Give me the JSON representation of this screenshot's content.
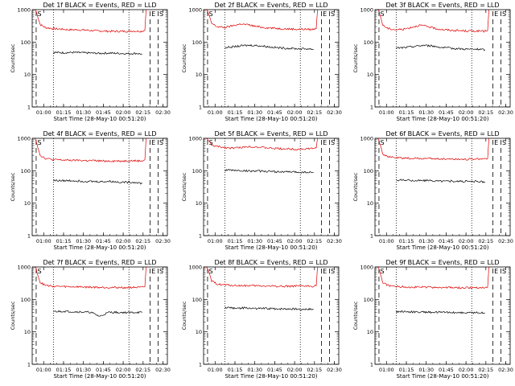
{
  "colors": {
    "events": "#000000",
    "lld": "#e00000",
    "axes": "#000000"
  },
  "chart_data": [
    {
      "type": "line",
      "title": "Det 1f BLACK = Events, RED = LLD",
      "xlabel": "Start Time (28-May-10 00:51:20)",
      "ylabel": "Counts/sec",
      "x_ticks": [
        "01:00",
        "01:15",
        "01:30",
        "01:45",
        "02:00",
        "02:15",
        "02:30"
      ],
      "y_ticks": [
        "1",
        "10",
        "100",
        "1000"
      ],
      "yscale": "log",
      "ylim": [
        1,
        1000
      ],
      "xlim": [
        "00:51:20",
        "02:33:20"
      ],
      "markers": [
        "S",
        "E",
        "S"
      ],
      "dashed_x": [
        "00:54:20",
        "02:20:20",
        "02:26:20"
      ],
      "dotted_x": [
        "01:07:20",
        "02:04:20"
      ],
      "series": [
        {
          "key": "lld",
          "x": [
            "00:53:20",
            "00:54:20",
            "00:57:20",
            "01:01:20",
            "01:07:20",
            "01:13:20",
            "01:19:20",
            "01:25:20",
            "01:31:20",
            "01:37:20",
            "01:43:20",
            "01:49:20",
            "01:55:20",
            "02:01:20",
            "02:07:20",
            "02:13:20",
            "02:16:20",
            "02:17:20"
          ],
          "y": [
            1000,
            900,
            350,
            280,
            260,
            250,
            240,
            240,
            235,
            225,
            220,
            215,
            215,
            215,
            220,
            215,
            230,
            1000
          ]
        },
        {
          "key": "events",
          "x": [
            "01:07:20",
            "01:14:20",
            "01:21:20",
            "01:28:20",
            "01:35:20",
            "01:42:20",
            "01:49:20",
            "01:56:20",
            "02:03:20",
            "02:10:20",
            "02:14:20"
          ],
          "y": [
            48,
            47,
            48,
            47,
            46,
            45,
            46,
            45,
            44,
            45,
            42
          ]
        }
      ]
    },
    {
      "type": "line",
      "title": "Det 2f BLACK = Events, RED = LLD",
      "xlabel": "Start Time (28-May-10 00:51:20)",
      "ylabel": "Counts/sec",
      "x_ticks": [
        "01:00",
        "01:15",
        "01:30",
        "01:45",
        "02:00",
        "02:15",
        "02:30"
      ],
      "y_ticks": [
        "1",
        "10",
        "100",
        "1000"
      ],
      "yscale": "log",
      "ylim": [
        1,
        1000
      ],
      "xlim": [
        "00:51:20",
        "02:33:20"
      ],
      "markers": [
        "S",
        "E",
        "S"
      ],
      "dashed_x": [
        "00:54:20",
        "02:20:20",
        "02:26:20"
      ],
      "dotted_x": [
        "01:07:20",
        "02:04:20"
      ],
      "series": [
        {
          "key": "lld",
          "x": [
            "00:53:20",
            "00:54:20",
            "00:57:20",
            "01:01:20",
            "01:07:20",
            "01:13:20",
            "01:19:20",
            "01:25:20",
            "01:31:20",
            "01:37:20",
            "01:43:20",
            "01:49:20",
            "01:55:20",
            "02:01:20",
            "02:07:20",
            "02:13:20",
            "02:16:20",
            "02:17:20"
          ],
          "y": [
            1000,
            900,
            380,
            300,
            280,
            320,
            360,
            340,
            300,
            280,
            270,
            260,
            255,
            250,
            250,
            245,
            260,
            1000
          ]
        },
        {
          "key": "events",
          "x": [
            "01:07:20",
            "01:14:20",
            "01:21:20",
            "01:28:20",
            "01:35:20",
            "01:42:20",
            "01:49:20",
            "01:56:20",
            "02:03:20",
            "02:10:20",
            "02:14:20"
          ],
          "y": [
            68,
            72,
            78,
            80,
            76,
            70,
            66,
            64,
            62,
            62,
            60
          ]
        }
      ]
    },
    {
      "type": "line",
      "title": "Det 3f BLACK = Events, RED = LLD",
      "xlabel": "Start Time (28-May-10 00:51:20)",
      "ylabel": "Counts/sec",
      "x_ticks": [
        "01:00",
        "01:15",
        "01:30",
        "01:45",
        "02:00",
        "02:15",
        "02:30"
      ],
      "y_ticks": [
        "1",
        "10",
        "100",
        "1000"
      ],
      "yscale": "log",
      "ylim": [
        1,
        1000
      ],
      "xlim": [
        "00:51:20",
        "02:33:20"
      ],
      "markers": [
        "S",
        "E",
        "S"
      ],
      "dashed_x": [
        "00:54:20",
        "02:20:20",
        "02:26:20"
      ],
      "dotted_x": [
        "01:07:20",
        "02:04:20"
      ],
      "series": [
        {
          "key": "lld",
          "x": [
            "00:53:20",
            "00:54:20",
            "00:57:20",
            "01:01:20",
            "01:07:20",
            "01:13:20",
            "01:19:20",
            "01:25:20",
            "01:31:20",
            "01:37:20",
            "01:43:20",
            "01:49:20",
            "01:55:20",
            "02:01:20",
            "02:07:20",
            "02:13:20",
            "02:16:20",
            "02:17:20"
          ],
          "y": [
            1000,
            900,
            330,
            260,
            240,
            250,
            290,
            330,
            300,
            260,
            240,
            230,
            225,
            220,
            220,
            215,
            230,
            1000
          ]
        },
        {
          "key": "events",
          "x": [
            "01:07:20",
            "01:14:20",
            "01:21:20",
            "01:28:20",
            "01:35:20",
            "01:42:20",
            "01:49:20",
            "01:56:20",
            "02:03:20",
            "02:10:20",
            "02:14:20"
          ],
          "y": [
            65,
            68,
            74,
            80,
            75,
            68,
            64,
            62,
            60,
            60,
            58
          ]
        }
      ]
    },
    {
      "type": "line",
      "title": "Det 4f BLACK = Events, RED = LLD",
      "xlabel": "Start Time (28-May-10 00:51:20)",
      "ylabel": "Counts/sec",
      "x_ticks": [
        "01:00",
        "01:15",
        "01:30",
        "01:45",
        "02:00",
        "02:15",
        "02:30"
      ],
      "y_ticks": [
        "1",
        "10",
        "100",
        "1000"
      ],
      "yscale": "log",
      "ylim": [
        1,
        1000
      ],
      "xlim": [
        "00:51:20",
        "02:33:20"
      ],
      "markers": [
        "S",
        "E",
        "S"
      ],
      "dashed_x": [
        "00:54:20",
        "02:20:20",
        "02:26:20"
      ],
      "dotted_x": [
        "01:07:20",
        "02:04:20"
      ],
      "series": [
        {
          "key": "lld",
          "x": [
            "00:53:20",
            "00:54:20",
            "00:57:20",
            "01:01:20",
            "01:07:20",
            "01:13:20",
            "01:19:20",
            "01:25:20",
            "01:31:20",
            "01:37:20",
            "01:43:20",
            "01:49:20",
            "01:55:20",
            "02:01:20",
            "02:07:20",
            "02:13:20",
            "02:16:20",
            "02:17:20"
          ],
          "y": [
            1000,
            850,
            300,
            240,
            220,
            215,
            210,
            210,
            205,
            205,
            200,
            200,
            200,
            200,
            205,
            200,
            215,
            1000
          ]
        },
        {
          "key": "events",
          "x": [
            "01:07:20",
            "01:14:20",
            "01:21:20",
            "01:28:20",
            "01:35:20",
            "01:42:20",
            "01:49:20",
            "01:56:20",
            "02:03:20",
            "02:10:20",
            "02:14:20"
          ],
          "y": [
            50,
            49,
            50,
            48,
            47,
            46,
            47,
            45,
            44,
            44,
            40
          ]
        }
      ]
    },
    {
      "type": "line",
      "title": "Det 5f BLACK = Events, RED = LLD",
      "xlabel": "Start Time (28-May-10 00:51:20)",
      "ylabel": "Counts/sec",
      "x_ticks": [
        "01:00",
        "01:15",
        "01:30",
        "01:45",
        "02:00",
        "02:15",
        "02:30"
      ],
      "y_ticks": [
        "1",
        "10",
        "100",
        "1000"
      ],
      "yscale": "log",
      "ylim": [
        1,
        1000
      ],
      "xlim": [
        "00:51:20",
        "02:33:20"
      ],
      "markers": [
        "S",
        "E",
        "S"
      ],
      "dashed_x": [
        "00:54:20",
        "02:20:20",
        "02:26:20"
      ],
      "dotted_x": [
        "01:07:20",
        "02:04:20"
      ],
      "series": [
        {
          "key": "lld",
          "x": [
            "00:53:20",
            "00:54:20",
            "00:57:20",
            "01:01:20",
            "01:07:20",
            "01:13:20",
            "01:19:20",
            "01:25:20",
            "01:31:20",
            "01:37:20",
            "01:43:20",
            "01:49:20",
            "01:55:20",
            "02:01:20",
            "02:07:20",
            "02:13:20",
            "02:16:20",
            "02:17:20"
          ],
          "y": [
            1000,
            950,
            620,
            560,
            520,
            500,
            520,
            560,
            540,
            510,
            490,
            480,
            470,
            460,
            470,
            480,
            500,
            1000
          ]
        },
        {
          "key": "events",
          "x": [
            "01:07:20",
            "01:14:20",
            "01:21:20",
            "01:28:20",
            "01:35:20",
            "01:42:20",
            "01:49:20",
            "01:56:20",
            "02:03:20",
            "02:10:20",
            "02:14:20"
          ],
          "y": [
            105,
            103,
            100,
            98,
            97,
            95,
            93,
            92,
            90,
            90,
            88
          ]
        }
      ]
    },
    {
      "type": "line",
      "title": "Det 6f BLACK = Events, RED = LLD",
      "xlabel": "Start Time (28-May-10 00:51:20)",
      "ylabel": "Counts/sec",
      "x_ticks": [
        "01:00",
        "01:15",
        "01:30",
        "01:45",
        "02:00",
        "02:15",
        "02:30"
      ],
      "y_ticks": [
        "1",
        "10",
        "100",
        "1000"
      ],
      "yscale": "log",
      "ylim": [
        1,
        1000
      ],
      "xlim": [
        "00:51:20",
        "02:33:20"
      ],
      "markers": [
        "S",
        "E",
        "S"
      ],
      "dashed_x": [
        "00:54:20",
        "02:20:20",
        "02:26:20"
      ],
      "dotted_x": [
        "01:07:20",
        "02:04:20"
      ],
      "series": [
        {
          "key": "lld",
          "x": [
            "00:53:20",
            "00:54:20",
            "00:57:20",
            "01:01:20",
            "01:07:20",
            "01:13:20",
            "01:19:20",
            "01:25:20",
            "01:31:20",
            "01:37:20",
            "01:43:20",
            "01:49:20",
            "01:55:20",
            "02:01:20",
            "02:07:20",
            "02:13:20",
            "02:16:20",
            "02:17:20"
          ],
          "y": [
            1000,
            880,
            330,
            270,
            250,
            245,
            240,
            240,
            238,
            235,
            232,
            230,
            228,
            228,
            232,
            230,
            240,
            1000
          ]
        },
        {
          "key": "events",
          "x": [
            "01:07:20",
            "01:14:20",
            "01:21:20",
            "01:28:20",
            "01:35:20",
            "01:42:20",
            "01:49:20",
            "01:56:20",
            "02:03:20",
            "02:10:20",
            "02:14:20"
          ],
          "y": [
            52,
            51,
            50,
            50,
            49,
            48,
            48,
            47,
            47,
            46,
            45
          ]
        }
      ]
    },
    {
      "type": "line",
      "title": "Det 7f BLACK = Events, RED = LLD",
      "xlabel": "Start Time (28-May-10 00:51:20)",
      "ylabel": "Counts/sec",
      "x_ticks": [
        "01:00",
        "01:15",
        "01:30",
        "01:45",
        "02:00",
        "02:15",
        "02:30"
      ],
      "y_ticks": [
        "1",
        "10",
        "100",
        "1000"
      ],
      "yscale": "log",
      "ylim": [
        1,
        1000
      ],
      "xlim": [
        "00:51:20",
        "02:33:20"
      ],
      "markers": [
        "S",
        "E",
        "S"
      ],
      "dashed_x": [
        "00:54:20",
        "02:20:20",
        "02:26:20"
      ],
      "dotted_x": [
        "01:07:20",
        "02:04:20"
      ],
      "series": [
        {
          "key": "lld",
          "x": [
            "00:53:20",
            "00:54:20",
            "00:57:20",
            "01:01:20",
            "01:07:20",
            "01:13:20",
            "01:19:20",
            "01:25:20",
            "01:31:20",
            "01:37:20",
            "01:43:20",
            "01:49:20",
            "01:55:20",
            "02:01:20",
            "02:07:20",
            "02:13:20",
            "02:16:20",
            "02:17:20"
          ],
          "y": [
            1000,
            880,
            330,
            270,
            255,
            250,
            245,
            245,
            240,
            238,
            235,
            235,
            232,
            232,
            235,
            232,
            245,
            1000
          ]
        },
        {
          "key": "events",
          "x": [
            "01:07:20",
            "01:14:20",
            "01:21:20",
            "01:28:20",
            "01:35:20",
            "01:42:20",
            "01:49:20",
            "01:56:20",
            "02:03:20",
            "02:10:20",
            "02:14:20"
          ],
          "y": [
            42,
            43,
            42,
            41,
            40,
            30,
            40,
            40,
            39,
            40,
            39
          ]
        }
      ]
    },
    {
      "type": "line",
      "title": "Det 8f BLACK = Events, RED = LLD",
      "xlabel": "Start Time (28-May-10 00:51:20)",
      "ylabel": "Counts/sec",
      "x_ticks": [
        "01:00",
        "01:15",
        "01:30",
        "01:45",
        "02:00",
        "02:15",
        "02:30"
      ],
      "y_ticks": [
        "1",
        "10",
        "100",
        "1000"
      ],
      "yscale": "log",
      "ylim": [
        1,
        1000
      ],
      "xlim": [
        "00:51:20",
        "02:33:20"
      ],
      "markers": [
        "S",
        "E",
        "S"
      ],
      "dashed_x": [
        "00:54:20",
        "02:20:20",
        "02:26:20"
      ],
      "dotted_x": [
        "01:07:20",
        "02:04:20"
      ],
      "series": [
        {
          "key": "lld",
          "x": [
            "00:53:20",
            "00:54:20",
            "00:57:20",
            "01:01:20",
            "01:07:20",
            "01:13:20",
            "01:19:20",
            "01:25:20",
            "01:31:20",
            "01:37:20",
            "01:43:20",
            "01:49:20",
            "01:55:20",
            "02:01:20",
            "02:07:20",
            "02:13:20",
            "02:16:20",
            "02:17:20"
          ],
          "y": [
            1000,
            900,
            370,
            300,
            280,
            270,
            265,
            265,
            262,
            260,
            258,
            255,
            255,
            255,
            258,
            255,
            265,
            1000
          ]
        },
        {
          "key": "events",
          "x": [
            "01:07:20",
            "01:14:20",
            "01:21:20",
            "01:28:20",
            "01:35:20",
            "01:42:20",
            "01:49:20",
            "01:56:20",
            "02:03:20",
            "02:10:20",
            "02:14:20"
          ],
          "y": [
            55,
            54,
            54,
            53,
            52,
            52,
            51,
            51,
            50,
            50,
            49
          ]
        }
      ]
    },
    {
      "type": "line",
      "title": "Det 9f BLACK = Events, RED = LLD",
      "xlabel": "Start Time (28-May-10 00:51:20)",
      "ylabel": "Counts/sec",
      "x_ticks": [
        "01:00",
        "01:15",
        "01:30",
        "01:45",
        "02:00",
        "02:15",
        "02:30"
      ],
      "y_ticks": [
        "1",
        "10",
        "100",
        "1000"
      ],
      "yscale": "log",
      "ylim": [
        1,
        1000
      ],
      "xlim": [
        "00:51:20",
        "02:33:20"
      ],
      "markers": [
        "S",
        "E",
        "S"
      ],
      "dashed_x": [
        "00:54:20",
        "02:20:20",
        "02:26:20"
      ],
      "dotted_x": [
        "01:07:20",
        "02:04:20"
      ],
      "series": [
        {
          "key": "lld",
          "x": [
            "00:53:20",
            "00:54:20",
            "00:57:20",
            "01:01:20",
            "01:07:20",
            "01:13:20",
            "01:19:20",
            "01:25:20",
            "01:31:20",
            "01:37:20",
            "01:43:20",
            "01:49:20",
            "01:55:20",
            "02:01:20",
            "02:07:20",
            "02:13:20",
            "02:16:20",
            "02:17:20"
          ],
          "y": [
            1000,
            880,
            330,
            270,
            250,
            245,
            240,
            240,
            238,
            235,
            232,
            230,
            228,
            228,
            232,
            230,
            240,
            1000
          ]
        },
        {
          "key": "events",
          "x": [
            "01:07:20",
            "01:14:20",
            "01:21:20",
            "01:28:20",
            "01:35:20",
            "01:42:20",
            "01:49:20",
            "01:56:20",
            "02:03:20",
            "02:10:20",
            "02:14:20"
          ],
          "y": [
            42,
            42,
            41,
            41,
            40,
            40,
            40,
            39,
            39,
            39,
            38
          ]
        }
      ]
    }
  ]
}
